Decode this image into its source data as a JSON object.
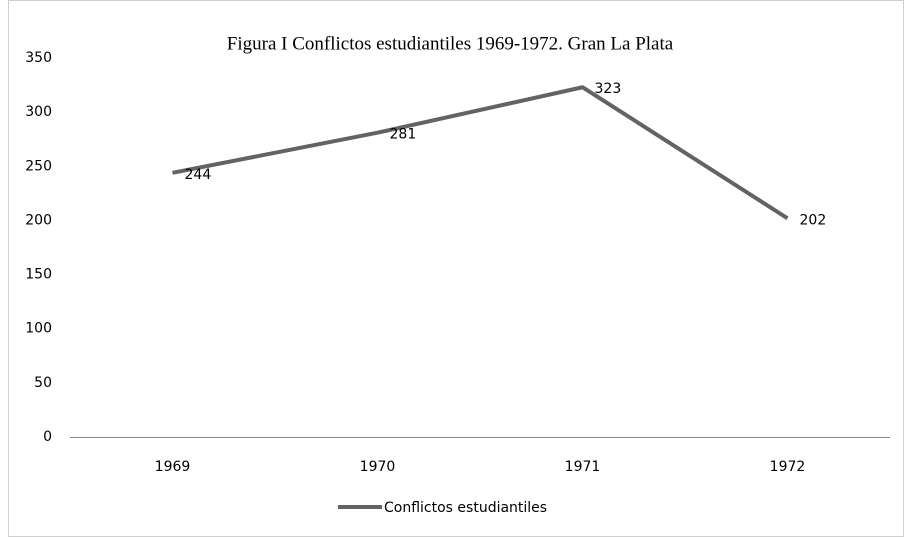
{
  "chart_data": {
    "type": "line",
    "title": "Figura I Conflictos estudiantiles 1969-1972. Gran La Plata",
    "categories": [
      "1969",
      "1970",
      "1971",
      "1972"
    ],
    "series": [
      {
        "name": "Conflictos estudiantiles",
        "color": "#636363",
        "values": [
          244,
          281,
          323,
          202
        ]
      }
    ],
    "ylim": [
      0,
      350
    ],
    "yticks": [
      0,
      50,
      100,
      150,
      200,
      250,
      300,
      350
    ],
    "grid": false,
    "legend": "bottom",
    "data_labels": true
  }
}
